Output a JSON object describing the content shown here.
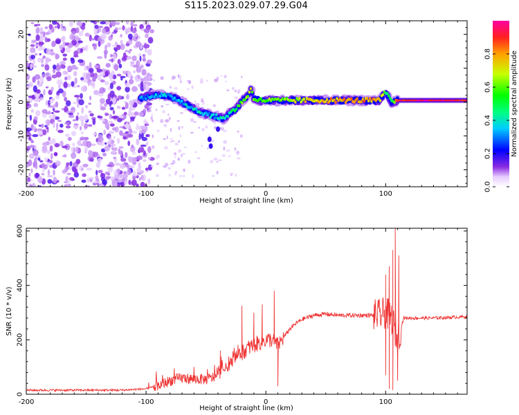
{
  "title": "S115.2023.029.07.29.G04",
  "chart_data": [
    {
      "type": "heatmap",
      "title": "S115.2023.029.07.29.G04",
      "xlabel": "Height of straight line (km)",
      "ylabel": "Frequency (Hz)",
      "xlim": [
        -200,
        168
      ],
      "ylim": [
        -25,
        24
      ],
      "xticks": [
        -200,
        -100,
        0,
        100
      ],
      "yticks": [
        -20,
        -10,
        0,
        10,
        20
      ],
      "colorbar": {
        "label": "Normalized spectral amplitude",
        "range": [
          0,
          1
        ],
        "ticks": [
          0.0,
          0.2,
          0.4,
          0.6,
          0.8
        ],
        "tick_labels": [
          "0.0",
          "0.2",
          "0.4",
          "0.6",
          "0.8"
        ]
      },
      "ridge": {
        "x": [
          -105,
          -95,
          -85,
          -75,
          -65,
          -55,
          -45,
          -35,
          -30,
          -25,
          -20,
          -15,
          -12,
          -10,
          -5,
          0,
          10,
          20,
          40,
          60,
          80,
          95,
          100,
          105,
          110,
          120,
          140,
          168
        ],
        "freq": [
          1,
          2,
          2,
          1,
          -1,
          -3,
          -4,
          -5,
          -3,
          -2,
          0,
          2,
          4,
          1,
          0.5,
          0.5,
          0.5,
          0.5,
          0.5,
          0.5,
          0.5,
          0.5,
          3,
          0,
          0.5,
          0.5,
          0.5,
          0.5
        ],
        "amplitude": [
          0.3,
          0.35,
          0.35,
          0.35,
          0.35,
          0.4,
          0.35,
          0.4,
          0.45,
          0.5,
          0.6,
          0.65,
          0.7,
          0.6,
          0.6,
          0.6,
          0.6,
          0.65,
          0.75,
          0.8,
          0.8,
          0.8,
          0.5,
          0.5,
          0.9,
          0.95,
          0.95,
          0.95
        ]
      },
      "noise_region_x": [
        -200,
        -95
      ]
    },
    {
      "type": "line",
      "xlabel": "Height of straight line (km)",
      "ylabel": "SNR (10 * v/v)",
      "xlim": [
        -200,
        168
      ],
      "ylim": [
        0,
        610
      ],
      "xticks": [
        -200,
        -100,
        0,
        100
      ],
      "yticks": [
        0,
        200,
        400,
        600
      ],
      "series": [
        {
          "color": "#ee3030",
          "x": [
            -200,
            -180,
            -160,
            -140,
            -120,
            -100,
            -90,
            -80,
            -70,
            -60,
            -50,
            -45,
            -40,
            -35,
            -30,
            -25,
            -20,
            -15,
            -10,
            -5,
            0,
            5,
            10,
            15,
            20,
            25,
            30,
            40,
            50,
            60,
            70,
            80,
            90,
            95,
            100,
            105,
            110,
            115,
            120,
            140,
            168
          ],
          "values": [
            15,
            15,
            15,
            15,
            15,
            20,
            30,
            50,
            60,
            55,
            55,
            60,
            70,
            90,
            110,
            140,
            150,
            170,
            180,
            190,
            200,
            200,
            180,
            210,
            240,
            260,
            275,
            290,
            295,
            290,
            290,
            290,
            290,
            290,
            300,
            280,
            200,
            280,
            280,
            280,
            285
          ]
        }
      ],
      "spikes": [
        {
          "x": -38,
          "y": 160
        },
        {
          "x": -20,
          "y": 325
        },
        {
          "x": -10,
          "y": 300
        },
        {
          "x": -3,
          "y": 330
        },
        {
          "x": 7,
          "y": 380
        },
        {
          "x": 100,
          "y": 440
        },
        {
          "x": 103,
          "y": 470
        },
        {
          "x": 106,
          "y": 530
        },
        {
          "x": 108,
          "y": 610
        },
        {
          "x": 111,
          "y": 510
        }
      ],
      "dips": [
        {
          "x": 10,
          "y": 30
        },
        {
          "x": 100,
          "y": 70
        },
        {
          "x": 103,
          "y": 20
        },
        {
          "x": 106,
          "y": 15
        },
        {
          "x": 110,
          "y": 50
        }
      ]
    }
  ]
}
